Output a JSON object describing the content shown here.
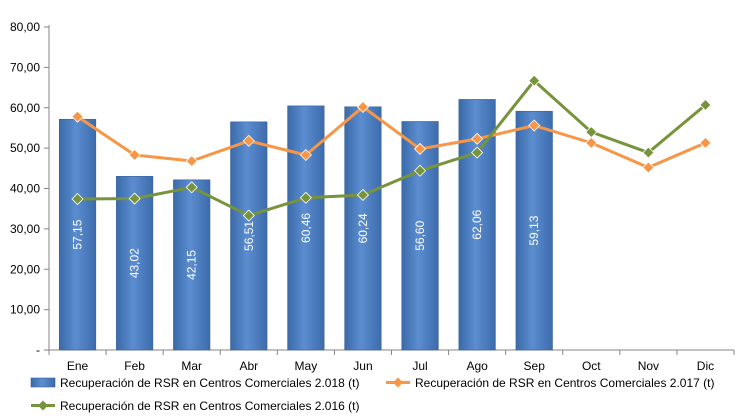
{
  "chart_data": {
    "type": "bar",
    "categories": [
      "Ene",
      "Feb",
      "Mar",
      "Abr",
      "May",
      "Jun",
      "Jul",
      "Ago",
      "Sep",
      "Oct",
      "Nov",
      "Dic"
    ],
    "y_ticks": [
      "-",
      "10,00",
      "20,00",
      "30,00",
      "40,00",
      "50,00",
      "60,00",
      "70,00",
      "80,00"
    ],
    "ylim": [
      0,
      80
    ],
    "grid": false,
    "legend_position": "bottom",
    "series": [
      {
        "name": "Recuperación de RSR en Centros Comerciales 2.018 (t)",
        "kind": "bar",
        "color": "#4f81bd",
        "values": [
          57.15,
          43.02,
          42.15,
          56.51,
          60.46,
          60.24,
          56.6,
          62.06,
          59.13,
          null,
          null,
          null
        ],
        "labels": [
          "57,15",
          "43,02",
          "42,15",
          "56,51",
          "60,46",
          "60,24",
          "56,60",
          "62,06",
          "59,13",
          "",
          "",
          ""
        ]
      },
      {
        "name": "Recuperación de RSR en Centros Comerciales 2.017 (t)",
        "kind": "line",
        "color": "#f79646",
        "values": [
          57.8,
          48.3,
          46.8,
          51.8,
          48.3,
          60.2,
          49.8,
          52.3,
          55.6,
          51.3,
          45.2,
          51.3
        ]
      },
      {
        "name": "Recuperación de RSR en Centros Comerciales 2.016 (t)",
        "kind": "line",
        "color": "#77933c",
        "values": [
          37.4,
          37.5,
          40.3,
          33.3,
          37.7,
          38.4,
          44.4,
          48.9,
          66.7,
          54.0,
          48.9,
          60.7
        ]
      }
    ]
  }
}
